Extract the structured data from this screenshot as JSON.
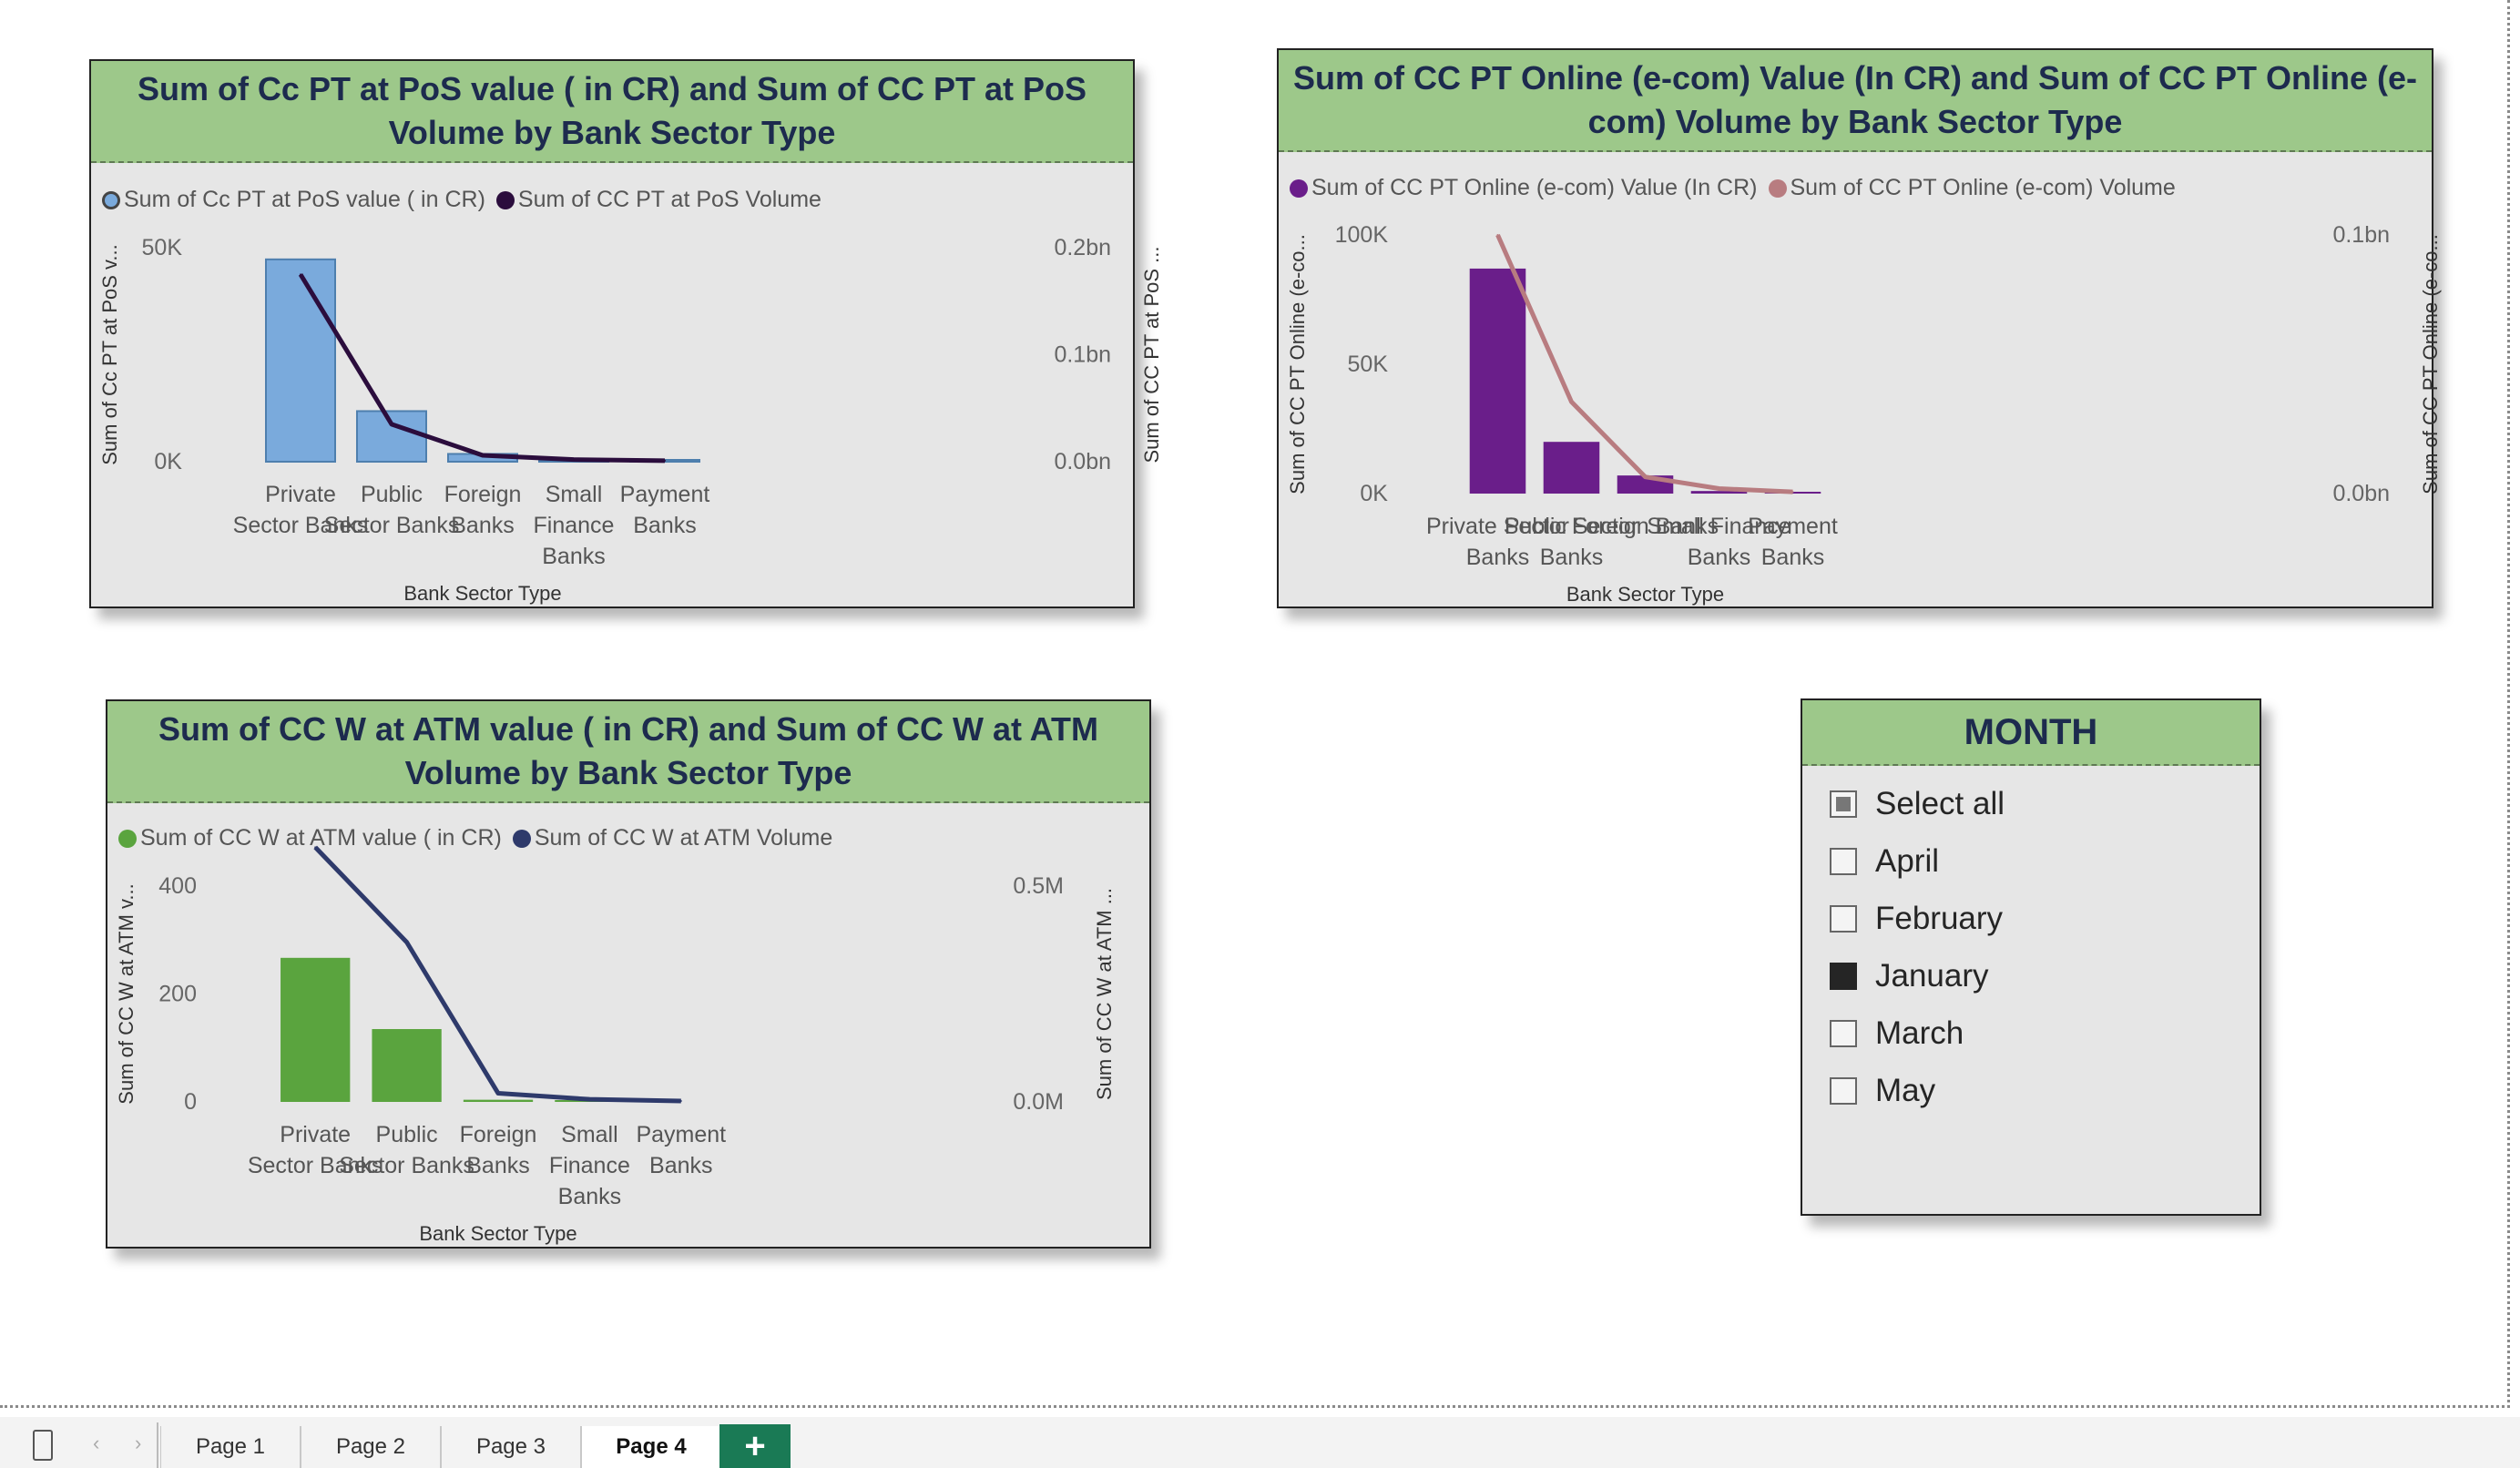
{
  "charts": [
    {
      "title": "Sum of Cc PT at PoS value ( in CR) and Sum of CC PT at PoS Volume by Bank Sector Type",
      "legend": {
        "bar_label": "Sum of Cc PT at PoS value ( in CR)",
        "line_label": "Sum of CC PT at PoS Volume",
        "bar_color": "#7aaadc",
        "line_color": "#2b0d3d",
        "bar_marker": "hollow"
      },
      "y_left_label": "Sum of Cc PT at PoS v...",
      "y_right_label": "Sum of CC PT at PoS ...",
      "x_label": "Bank Sector Type",
      "y_left_ticks": [
        "0K",
        "50K"
      ],
      "y_right_ticks": [
        "0.0bn",
        "0.1bn",
        "0.2bn"
      ]
    },
    {
      "title": "Sum of CC PT Online (e-com) Value (In CR) and Sum of CC PT Online (e-com) Volume by Bank Sector Type",
      "legend": {
        "bar_label": "Sum of CC PT Online (e-com) Value (In CR)",
        "line_label": "Sum of CC PT Online (e-com) Volume",
        "bar_color": "#6a1e8a",
        "line_color": "#b87c80",
        "bar_marker": "solid"
      },
      "y_left_label": "Sum of CC PT Online (e-co...",
      "y_right_label": "Sum of CC PT Online (e-co...",
      "x_label": "Bank Sector Type",
      "y_left_ticks": [
        "0K",
        "50K",
        "100K"
      ],
      "y_right_ticks": [
        "0.0bn",
        "0.1bn"
      ]
    },
    {
      "title": "Sum of CC W at ATM value ( in CR) and Sum of CC W at ATM Volume by Bank Sector Type",
      "legend": {
        "bar_label": "Sum of CC W at ATM value ( in CR)",
        "line_label": "Sum of CC W at ATM Volume",
        "bar_color": "#5aa43e",
        "line_color": "#2e3a6b",
        "bar_marker": "solid"
      },
      "y_left_label": "Sum of CC W at ATM v...",
      "y_right_label": "Sum of CC W at ATM ...",
      "x_label": "Bank Sector Type",
      "y_left_ticks": [
        "0",
        "200",
        "400"
      ],
      "y_right_ticks": [
        "0.0M",
        "0.5M"
      ]
    }
  ],
  "chart_data": [
    {
      "type": "bar",
      "categories": [
        "Private Sector Banks",
        "Public Sector Banks",
        "Foreign Banks",
        "Small Finance Banks",
        "Payment Banks"
      ],
      "series": [
        {
          "name": "Sum of Cc PT at PoS value ( in CR)",
          "type": "bar",
          "axis": "left",
          "values": [
            52000,
            13000,
            2000,
            300,
            100
          ]
        },
        {
          "name": "Sum of CC PT at PoS Volume",
          "type": "line",
          "axis": "right",
          "values": [
            0.175,
            0.035,
            0.006,
            0.002,
            0.001
          ]
        }
      ],
      "title": "Sum of Cc PT at PoS value ( in CR) and Sum of CC PT at PoS Volume by Bank Sector Type",
      "xlabel": "Bank Sector Type",
      "ylabel": "Sum of Cc PT at PoS v...",
      "y2label": "Sum of CC PT at PoS ...",
      "ylim": [
        0,
        55000
      ],
      "y2lim": [
        0,
        0.2
      ],
      "legend": "top-left",
      "grid": false
    },
    {
      "type": "bar",
      "categories": [
        "Private Sector Banks",
        "Public Sector Banks",
        "Foreign Banks",
        "Small Finance Banks",
        "Payment Banks"
      ],
      "series": [
        {
          "name": "Sum of CC PT Online (e-com) Value (In CR)",
          "type": "bar",
          "axis": "left",
          "values": [
            87000,
            20000,
            7000,
            1000,
            200
          ]
        },
        {
          "name": "Sum of CC PT Online (e-com) Volume",
          "type": "line",
          "axis": "right",
          "values": [
            0.155,
            0.055,
            0.01,
            0.003,
            0.001
          ]
        }
      ],
      "title": "Sum of CC PT Online (e-com) Value (In CR) and Sum of CC PT Online (e-com) Volume by Bank Sector Type",
      "xlabel": "Bank Sector Type",
      "ylabel": "Sum of CC PT Online (e-co...",
      "y2label": "Sum of CC PT Online (e-co...",
      "ylim": [
        0,
        100000
      ],
      "y2lim": [
        0,
        0.155
      ],
      "legend": "top-left",
      "grid": false
    },
    {
      "type": "bar",
      "categories": [
        "Private Sector Banks",
        "Public Sector Banks",
        "Foreign Banks",
        "Small Finance Banks",
        "Payment Banks"
      ],
      "series": [
        {
          "name": "Sum of CC W at ATM value ( in CR)",
          "type": "bar",
          "axis": "left",
          "values": [
            267,
            135,
            4,
            1,
            0
          ]
        },
        {
          "name": "Sum of CC W at ATM Volume",
          "type": "line",
          "axis": "right",
          "values": [
            0.59,
            0.37,
            0.02,
            0.006,
            0.002
          ]
        }
      ],
      "title": "Sum of CC W at ATM value ( in CR) and Sum of CC W at ATM Volume by Bank Sector Type",
      "xlabel": "Bank Sector Type",
      "ylabel": "Sum of CC W at ATM v...",
      "y2label": "Sum of CC W at ATM ...",
      "ylim": [
        0,
        400
      ],
      "y2lim": [
        0,
        0.5
      ],
      "legend": "top-left",
      "grid": false
    }
  ],
  "category_lines": [
    [
      [
        "Private",
        "Sector Banks"
      ],
      [
        "Public",
        "Sector Banks"
      ],
      [
        "Foreign",
        "Banks"
      ],
      [
        "Small",
        "Finance",
        "Banks"
      ],
      [
        "Payment",
        "Banks"
      ]
    ],
    [
      [
        "Private Sector",
        "Banks"
      ],
      [
        "Public Sector",
        "Banks"
      ],
      [
        "Foreign Banks"
      ],
      [
        "Small Finance",
        "Banks"
      ],
      [
        "Payment",
        "Banks"
      ]
    ],
    [
      [
        "Private",
        "Sector Banks"
      ],
      [
        "Public",
        "Sector Banks"
      ],
      [
        "Foreign",
        "Banks"
      ],
      [
        "Small",
        "Finance",
        "Banks"
      ],
      [
        "Payment",
        "Banks"
      ]
    ]
  ],
  "slicer": {
    "title": "MONTH",
    "items": [
      {
        "label": "Select all",
        "state": "partial"
      },
      {
        "label": "April",
        "state": "unchecked"
      },
      {
        "label": "February",
        "state": "unchecked"
      },
      {
        "label": "January",
        "state": "checked"
      },
      {
        "label": "March",
        "state": "unchecked"
      },
      {
        "label": "May",
        "state": "unchecked"
      }
    ]
  },
  "tabs": {
    "items": [
      "Page 1",
      "Page 2",
      "Page 3",
      "Page 4"
    ],
    "active": "Page 4",
    "close_glyph": "x",
    "add_glyph": "+"
  }
}
